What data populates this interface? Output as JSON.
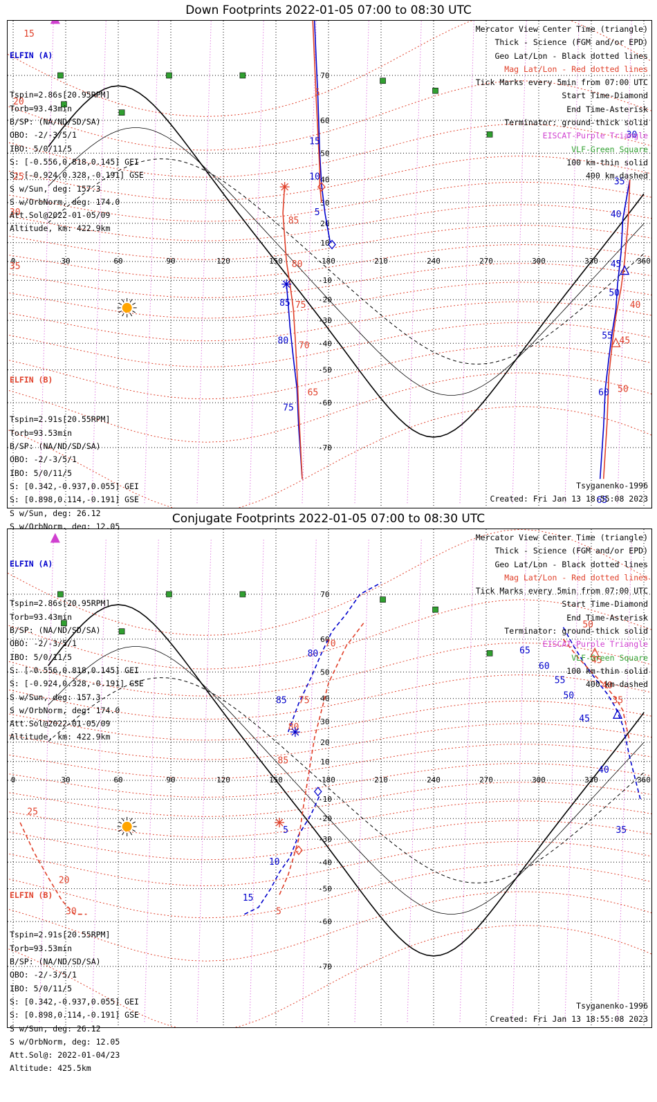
{
  "panels": [
    {
      "title": "Down Footprints 2022-01-05 07:00 to 08:30 UTC",
      "elfin_a": {
        "header": "ELFIN (A)",
        "lines": [
          "Tspin=2.86s[20.95RPM]",
          "Torb=93.43min",
          "B/SP: (NA/ND/SD/SA)",
          "OBO: -2/-3/5/1",
          "IBO: 5/0/11/5",
          "S: [-0.556,0.818,0.145] GEI",
          "S: [-0.924,0.328,-0.191] GSE",
          "S w/Sun, deg: 157.3",
          "S w/OrbNorm, deg: 174.0",
          "Att.Sol@2022-01-05/09",
          "Altitude, km: 422.9km"
        ]
      },
      "elfin_b": {
        "header": "ELFIN (B)",
        "lines": [
          "Tspin=2.91s[20.55RPM]",
          "Torb=93.53min",
          "B/SP: (NA/ND/SD/SA)",
          "OBO: -2/-3/5/1",
          "IBO: 5/0/11/5",
          "S: [0.342,-0.937,0.055] GEI",
          "S: [0.898,0.114,-0.191] GSE",
          "S w/Sun, deg: 26.12",
          "S w/OrbNorm, deg: 12.05",
          "Att.Sol@: 2022-01-04/23",
          "Altitude: 425.5km"
        ]
      },
      "legend": [
        {
          "text": "Mercator View Center Time (triangle)",
          "color": "#000000"
        },
        {
          "text": "Thick - Science (FGM and/or EPD)",
          "color": "#000000"
        },
        {
          "text": "Geo Lat/Lon - Black dotted lines",
          "color": "#000000"
        },
        {
          "text": "Mag Lat/Lon - Red dotted lines",
          "color": "#e0402a"
        },
        {
          "text": "Tick Marks every 5min from 07:00 UTC",
          "color": "#000000"
        },
        {
          "text": "Start Time-Diamond",
          "color": "#000000"
        },
        {
          "text": "End Time-Asterisk",
          "color": "#000000"
        },
        {
          "text": "Terminator: ground-thick solid",
          "color": "#000000"
        },
        {
          "text": "EISCAT-Purple Triangle",
          "color": "#d040d0"
        },
        {
          "text": "VLF-Green Square",
          "color": "#30a030"
        },
        {
          "text": "100 km-thin solid",
          "color": "#000000"
        },
        {
          "text": "400 km-dashed",
          "color": "#000000"
        }
      ],
      "model": "Tsyganenko-1996",
      "created": "Created: Fri Jan 13 18:55:08 2023"
    },
    {
      "title": "Conjugate Footprints 2022-01-05 07:00 to 08:30 UTC",
      "elfin_a": {
        "header": "ELFIN (A)",
        "lines": [
          "Tspin=2.86s[20.95RPM]",
          "Torb=93.43min",
          "B/SP: (NA/ND/SD/SA)",
          "OBO: -2/-3/5/1",
          "IBO: 5/0/11/5",
          "S: [-0.556,0.818,0.145] GEI",
          "S: [-0.924,0.328,-0.191] GSE",
          "S w/Sun, deg: 157.3",
          "S w/OrbNorm, deg: 174.0",
          "Att.Sol@2022-01-05/09",
          "Altitude, km: 422.9km"
        ]
      },
      "elfin_b": {
        "header": "ELFIN (B)",
        "lines": [
          "Tspin=2.91s[20.55RPM]",
          "Torb=93.53min",
          "B/SP: (NA/ND/SD/SA)",
          "OBO: -2/-3/5/1",
          "IBO: 5/0/11/5",
          "S: [0.342,-0.937,0.055] GEI",
          "S: [0.898,0.114,-0.191] GSE",
          "S w/Sun, deg: 26.12",
          "S w/OrbNorm, deg: 12.05",
          "Att.Sol@: 2022-01-04/23",
          "Altitude: 425.5km"
        ]
      },
      "legend": [
        {
          "text": "Mercator View Center Time (triangle)",
          "color": "#000000"
        },
        {
          "text": "Thick - Science (FGM and/or EPD)",
          "color": "#000000"
        },
        {
          "text": "Geo Lat/Lon - Black dotted lines",
          "color": "#000000"
        },
        {
          "text": "Mag Lat/Lon - Red dotted lines",
          "color": "#e0402a"
        },
        {
          "text": "Tick Marks every 5min from 07:00 UTC",
          "color": "#000000"
        },
        {
          "text": "Start Time-Diamond",
          "color": "#000000"
        },
        {
          "text": "End Time-Asterisk",
          "color": "#000000"
        },
        {
          "text": "Terminator: ground-thick solid",
          "color": "#000000"
        },
        {
          "text": "EISCAT-Purple Triangle",
          "color": "#d040d0"
        },
        {
          "text": "VLF-Green Square",
          "color": "#30a030"
        },
        {
          "text": "100 km-thin solid",
          "color": "#000000"
        },
        {
          "text": "400 km-dashed",
          "color": "#000000"
        }
      ],
      "model": "Tsyganenko-1996",
      "created": "Created: Fri Jan 13 18:55:08 2023"
    }
  ],
  "chart_data": [
    {
      "type": "line",
      "title": "Down Footprints 2022-01-05 07:00 to 08:30 UTC",
      "projection": "mercator",
      "xlim": [
        0,
        360
      ],
      "ylim": [
        -80,
        80
      ],
      "lon_ticks": [
        "0",
        "30",
        "60",
        "90",
        "120",
        "150",
        "180",
        "210",
        "240",
        "270",
        "300",
        "330",
        "360"
      ],
      "lat_ticks": [
        "70",
        "60",
        "50",
        "40",
        "30",
        "20",
        "10",
        "-10",
        "-20",
        "-30",
        "-40",
        "-50",
        "-60",
        "-70"
      ],
      "colors": {
        "elfin_a": "#0000cc",
        "elfin_b": "#e0402a",
        "geo_grid": "#000000",
        "mag_grid": "#e0402a",
        "eiscat": "#d040d0",
        "vlf": "#30a030",
        "sun": "#ffa500"
      },
      "series": [
        {
          "name": "ELFIN (A)",
          "lon": [
            172,
            174,
            175,
            176,
            178,
            181
          ],
          "lat": [
            78,
            65,
            50,
            38,
            25,
            10
          ]
        },
        {
          "name": "ELFIN (A)",
          "lon": [
            156,
            157,
            158,
            160,
            162,
            163,
            165
          ],
          "lat": [
            -12,
            -22,
            -33,
            -46,
            -56,
            -66,
            -75
          ]
        },
        {
          "name": "ELFIN (A)",
          "lon": [
            335,
            337,
            338,
            340,
            342,
            344,
            345,
            347,
            348,
            352
          ],
          "lat": [
            -75,
            -66,
            -56,
            -46,
            -35,
            -25,
            -12,
            5,
            22,
            40
          ]
        },
        {
          "name": "ELFIN (B)",
          "lon": [
            171,
            173,
            174,
            175,
            175,
            176
          ],
          "lat": [
            78,
            65,
            56,
            44,
            38,
            30
          ]
        },
        {
          "name": "ELFIN (B)",
          "lon": [
            155,
            154,
            156,
            158,
            160,
            161,
            162,
            163,
            165
          ],
          "lat": [
            38,
            25,
            0,
            -12,
            -25,
            -38,
            -50,
            -62,
            -75
          ]
        },
        {
          "name": "ELFIN (B)",
          "lon": [
            337,
            339,
            340,
            342,
            344,
            347,
            349,
            351,
            352
          ],
          "lat": [
            -75,
            -65,
            -52,
            -40,
            -28,
            -14,
            0,
            20,
            40
          ]
        }
      ],
      "tick_labels_a": [
        {
          "t": "15",
          "lon": 169,
          "lat": 53,
          "side": "A"
        },
        {
          "t": "10",
          "lon": 169,
          "lat": 40,
          "side": "A"
        },
        {
          "t": "5",
          "lon": 172,
          "lat": 24,
          "side": "A"
        },
        {
          "t": "85",
          "lon": 152,
          "lat": -23,
          "side": "A"
        },
        {
          "t": "80",
          "lon": 151,
          "lat": -40,
          "side": "A"
        },
        {
          "t": "75",
          "lon": 154,
          "lat": -62,
          "side": "A"
        },
        {
          "t": "65",
          "lon": 333,
          "lat": -78,
          "side": "A"
        },
        {
          "t": "60",
          "lon": 334,
          "lat": -58,
          "side": "A"
        },
        {
          "t": "55",
          "lon": 336,
          "lat": -38,
          "side": "A"
        },
        {
          "t": "50",
          "lon": 340,
          "lat": -18,
          "side": "A"
        },
        {
          "t": "45",
          "lon": 341,
          "lat": -3,
          "side": "A"
        },
        {
          "t": "40",
          "lon": 341,
          "lat": 23,
          "side": "A"
        },
        {
          "t": "35",
          "lon": 343,
          "lat": 38,
          "side": "A"
        },
        {
          "t": "30",
          "lon": 350,
          "lat": 55,
          "side": "A"
        }
      ],
      "tick_labels_b": [
        {
          "t": "5",
          "lon": 172,
          "lat": 66
        },
        {
          "t": "85",
          "lon": 157,
          "lat": 20
        },
        {
          "t": "80",
          "lon": 159,
          "lat": -3
        },
        {
          "t": "75",
          "lon": 161,
          "lat": -24
        },
        {
          "t": "70",
          "lon": 163,
          "lat": -42
        },
        {
          "t": "65",
          "lon": 168,
          "lat": -58
        },
        {
          "t": "50",
          "lon": 345,
          "lat": -57
        },
        {
          "t": "45",
          "lon": 346,
          "lat": -40
        },
        {
          "t": "40",
          "lon": 352,
          "lat": -24
        },
        {
          "t": "15",
          "lon": 6,
          "lat": 76
        },
        {
          "t": "20",
          "lon": 0,
          "lat": 64
        },
        {
          "t": "25",
          "lon": 0,
          "lat": 40
        },
        {
          "t": "30",
          "lon": -2,
          "lat": 24
        },
        {
          "t": "35",
          "lon": -2,
          "lat": -4
        }
      ],
      "markers": [
        {
          "kind": "diamond",
          "color": "#0000cc",
          "lon": 182,
          "lat": 9
        },
        {
          "kind": "diamond",
          "color": "#e0402a",
          "lon": 176,
          "lat": 37
        },
        {
          "kind": "asterisk",
          "color": "#0000cc",
          "lon": 156,
          "lat": -12
        },
        {
          "kind": "asterisk",
          "color": "#e0402a",
          "lon": 155,
          "lat": 37
        },
        {
          "kind": "triangle",
          "color": "#0000cc",
          "lon": 349,
          "lat": -5
        },
        {
          "kind": "triangle",
          "color": "#e0402a",
          "lon": 344,
          "lat": -40
        },
        {
          "kind": "triangle",
          "color": "#d040d0",
          "lon": 24,
          "lat": 78
        }
      ],
      "vlf_sites": [
        [
          27,
          70
        ],
        [
          29,
          64
        ],
        [
          62,
          62
        ],
        [
          89,
          70
        ],
        [
          131,
          70
        ],
        [
          211,
          69
        ],
        [
          241,
          67
        ],
        [
          272,
          56
        ]
      ],
      "sun": {
        "lon": 65,
        "lat": -24
      }
    },
    {
      "type": "line",
      "title": "Conjugate Footprints 2022-01-05 07:00 to 08:30 UTC",
      "projection": "mercator",
      "xlim": [
        0,
        360
      ],
      "ylim": [
        -80,
        80
      ],
      "lon_ticks": [
        "0",
        "30",
        "60",
        "90",
        "120",
        "150",
        "180",
        "210",
        "240",
        "270",
        "300",
        "330",
        "360"
      ],
      "lat_ticks": [
        "70",
        "60",
        "50",
        "40",
        "30",
        "20",
        "10",
        "-10",
        "-20",
        "-30",
        "-40",
        "-50",
        "-60",
        "-70"
      ],
      "colors": {
        "elfin_a": "#0000cc",
        "elfin_b": "#e0402a",
        "geo_grid": "#000000",
        "mag_grid": "#e0402a",
        "eiscat": "#d040d0",
        "vlf": "#30a030",
        "sun": "#ffa500"
      },
      "series": [
        {
          "name": "ELFIN (A)",
          "lon": [
            132,
            140,
            147,
            152,
            158,
            163,
            170,
            175
          ],
          "lat": [
            -58,
            -56,
            -50,
            -44,
            -38,
            -28,
            -18,
            -8
          ]
        },
        {
          "name": "ELFIN (A)",
          "lon": [
            157,
            163,
            170,
            176,
            182,
            190,
            198,
            210
          ],
          "lat": [
            25,
            38,
            48,
            56,
            62,
            66,
            70,
            72
          ]
        },
        {
          "name": "ELFIN (A)",
          "lon": [
            314,
            320,
            327,
            333,
            339,
            344,
            348,
            352,
            358
          ],
          "lat": [
            63,
            58,
            52,
            47,
            42,
            36,
            28,
            12,
            -10
          ]
        },
        {
          "name": "ELFIN (B)",
          "lon": [
            152,
            157,
            160,
            163,
            166,
            172,
            180,
            190,
            200
          ],
          "lat": [
            -52,
            -45,
            -38,
            -30,
            -12,
            22,
            46,
            58,
            64
          ]
        },
        {
          "name": "ELFIN (B)",
          "lon": [
            314,
            322,
            330,
            338,
            344,
            348,
            352
          ],
          "lat": [
            60,
            55,
            50,
            45,
            40,
            35,
            20
          ]
        },
        {
          "name": "ELFIN (B)",
          "lon": [
            4,
            12,
            20,
            28,
            35,
            42
          ],
          "lat": [
            -22,
            -36,
            -46,
            -54,
            -58,
            -58
          ]
        }
      ],
      "tick_labels_a": [
        {
          "t": "15",
          "lon": 131,
          "lat": -54
        },
        {
          "t": "10",
          "lon": 146,
          "lat": -41
        },
        {
          "t": "5",
          "lon": 154,
          "lat": -27
        },
        {
          "t": "85",
          "lon": 150,
          "lat": 38
        },
        {
          "t": "80",
          "lon": 168,
          "lat": 55
        },
        {
          "t": "65",
          "lon": 289,
          "lat": 56
        },
        {
          "t": "60",
          "lon": 300,
          "lat": 51
        },
        {
          "t": "55",
          "lon": 309,
          "lat": 46
        },
        {
          "t": "50",
          "lon": 314,
          "lat": 40
        },
        {
          "t": "45",
          "lon": 323,
          "lat": 30
        },
        {
          "t": "40",
          "lon": 334,
          "lat": 4
        },
        {
          "t": "35",
          "lon": 344,
          "lat": -27
        }
      ],
      "tick_labels_b": [
        {
          "t": "5",
          "lon": 150,
          "lat": -58
        },
        {
          "t": "85",
          "lon": 151,
          "lat": 9
        },
        {
          "t": "80",
          "lon": 157,
          "lat": 26
        },
        {
          "t": "75",
          "lon": 163,
          "lat": 38
        },
        {
          "t": "70",
          "lon": 178,
          "lat": 58
        },
        {
          "t": "50",
          "lon": 325,
          "lat": 63
        },
        {
          "t": "45",
          "lon": 330,
          "lat": 53
        },
        {
          "t": "40",
          "lon": 336,
          "lat": 44
        },
        {
          "t": "35",
          "lon": 342,
          "lat": 38
        },
        {
          "t": "25",
          "lon": 8,
          "lat": -18
        },
        {
          "t": "20",
          "lon": 26,
          "lat": -48
        },
        {
          "t": "30",
          "lon": 30,
          "lat": -58
        }
      ],
      "markers": [
        {
          "kind": "diamond",
          "color": "#0000cc",
          "lon": 174,
          "lat": -6
        },
        {
          "kind": "diamond",
          "color": "#e0402a",
          "lon": 163,
          "lat": -35
        },
        {
          "kind": "asterisk",
          "color": "#0000cc",
          "lon": 161,
          "lat": 25
        },
        {
          "kind": "asterisk",
          "color": "#e0402a",
          "lon": 152,
          "lat": -22
        },
        {
          "kind": "triangle",
          "color": "#0000cc",
          "lon": 345,
          "lat": 33
        },
        {
          "kind": "triangle",
          "color": "#e0402a",
          "lon": 332,
          "lat": 56
        },
        {
          "kind": "triangle",
          "color": "#d040d0",
          "lon": 24,
          "lat": 78
        }
      ],
      "vlf_sites": [
        [
          27,
          70
        ],
        [
          29,
          64
        ],
        [
          62,
          62
        ],
        [
          89,
          70
        ],
        [
          131,
          70
        ],
        [
          211,
          69
        ],
        [
          241,
          67
        ],
        [
          272,
          56
        ]
      ],
      "sun": {
        "lon": 65,
        "lat": -24
      }
    }
  ]
}
